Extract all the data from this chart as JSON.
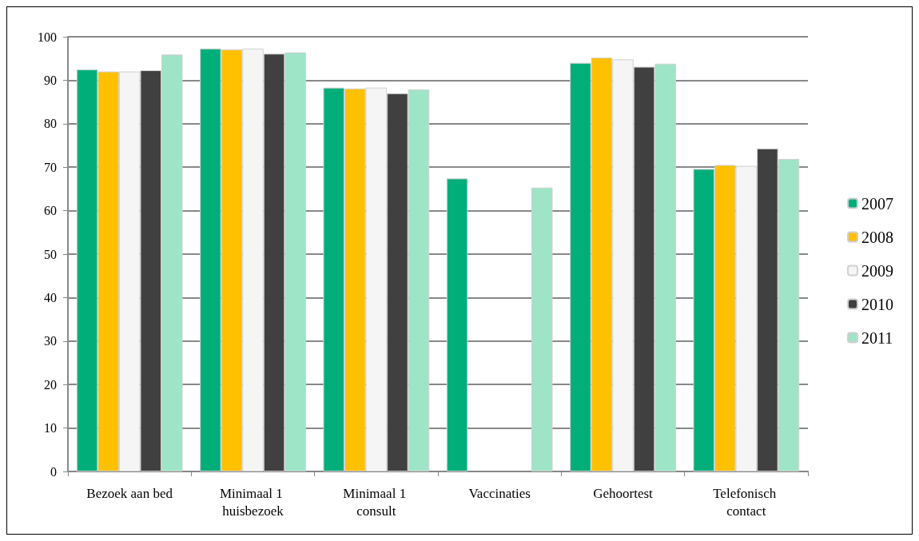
{
  "chart_data": {
    "type": "bar",
    "categories": [
      "Bezoek aan bed",
      "Minimaal 1 huisbezoek",
      "Minimaal 1 consult",
      "Vaccinaties",
      "Gehoortest",
      "Telefonisch contact"
    ],
    "series": [
      {
        "name": "2007",
        "color": "#00ae7a",
        "values": [
          92.5,
          97.3,
          88.3,
          67.4,
          94.0,
          69.6
        ]
      },
      {
        "name": "2008",
        "color": "#ffc000",
        "values": [
          92.0,
          97.1,
          88.1,
          null,
          95.2,
          70.5
        ]
      },
      {
        "name": "2009",
        "color": "#f5f5f5",
        "values": [
          92.0,
          97.3,
          88.3,
          null,
          94.8,
          70.3
        ]
      },
      {
        "name": "2010",
        "color": "#404040",
        "values": [
          92.3,
          96.1,
          87.0,
          null,
          93.1,
          74.3
        ]
      },
      {
        "name": "2011",
        "color": "#9de5c6",
        "values": [
          95.9,
          96.4,
          87.9,
          65.3,
          93.8,
          71.9
        ]
      }
    ],
    "ylim": [
      0,
      100
    ],
    "yticks": [
      0,
      10,
      20,
      30,
      40,
      50,
      60,
      70,
      80,
      90,
      100
    ],
    "grid": "y",
    "legend": "right"
  }
}
